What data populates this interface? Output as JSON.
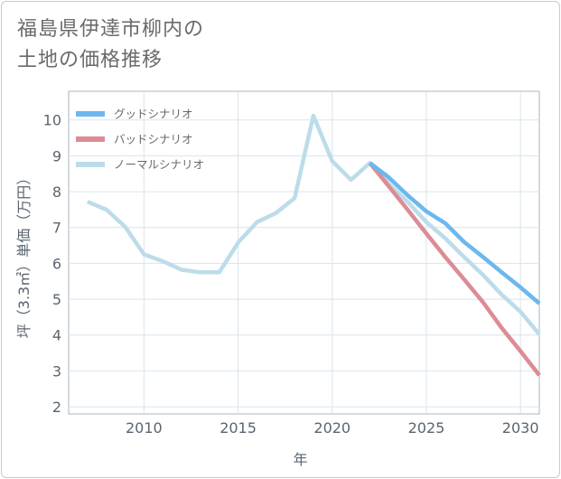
{
  "title_lines": [
    "福島県伊達市柳内の",
    "土地の価格推移"
  ],
  "colors": {
    "good": "#6bb8ee",
    "bad": "#dc8c95",
    "normal": "#bcdcea",
    "grid": "#d9e4ec",
    "plot_border": "#a9b6c1"
  },
  "chart_data": {
    "type": "line",
    "title": "福島県伊達市柳内の土地の価格推移",
    "xlabel": "年",
    "ylabel": "坪（3.3㎡）単価（万円）",
    "xlim": [
      2006,
      2031
    ],
    "ylim": [
      1.8,
      10.8
    ],
    "xticks": [
      2010,
      2015,
      2020,
      2025,
      2030
    ],
    "yticks": [
      2,
      3,
      4,
      5,
      6,
      7,
      8,
      9,
      10
    ],
    "grid": true,
    "legend_position": "top-left",
    "series": [
      {
        "name": "グッドシナリオ",
        "color_key": "good",
        "x": [
          2022,
          2023,
          2024,
          2025,
          2026,
          2027,
          2028,
          2029,
          2030,
          2031
        ],
        "y": [
          8.8,
          8.4,
          7.9,
          7.45,
          7.12,
          6.6,
          6.18,
          5.75,
          5.33,
          4.88
        ]
      },
      {
        "name": "バッドシナリオ",
        "color_key": "bad",
        "x": [
          2022,
          2023,
          2024,
          2025,
          2026,
          2027,
          2028,
          2029,
          2030,
          2031
        ],
        "y": [
          8.8,
          8.15,
          7.5,
          6.83,
          6.18,
          5.56,
          4.92,
          4.2,
          3.55,
          2.88
        ]
      },
      {
        "name": "ノーマルシナリオ",
        "color_key": "normal",
        "x": [
          2007,
          2008,
          2009,
          2010,
          2011,
          2012,
          2013,
          2014,
          2015,
          2016,
          2017,
          2018,
          2019,
          2020,
          2021,
          2022,
          2023,
          2024,
          2025,
          2026,
          2027,
          2028,
          2029,
          2030,
          2031
        ],
        "y": [
          7.72,
          7.5,
          7.02,
          6.25,
          6.06,
          5.82,
          5.75,
          5.75,
          6.58,
          7.15,
          7.4,
          7.82,
          10.12,
          8.85,
          8.33,
          8.8,
          8.22,
          7.72,
          7.15,
          6.7,
          6.18,
          5.68,
          5.13,
          4.65,
          4.02
        ]
      }
    ]
  }
}
